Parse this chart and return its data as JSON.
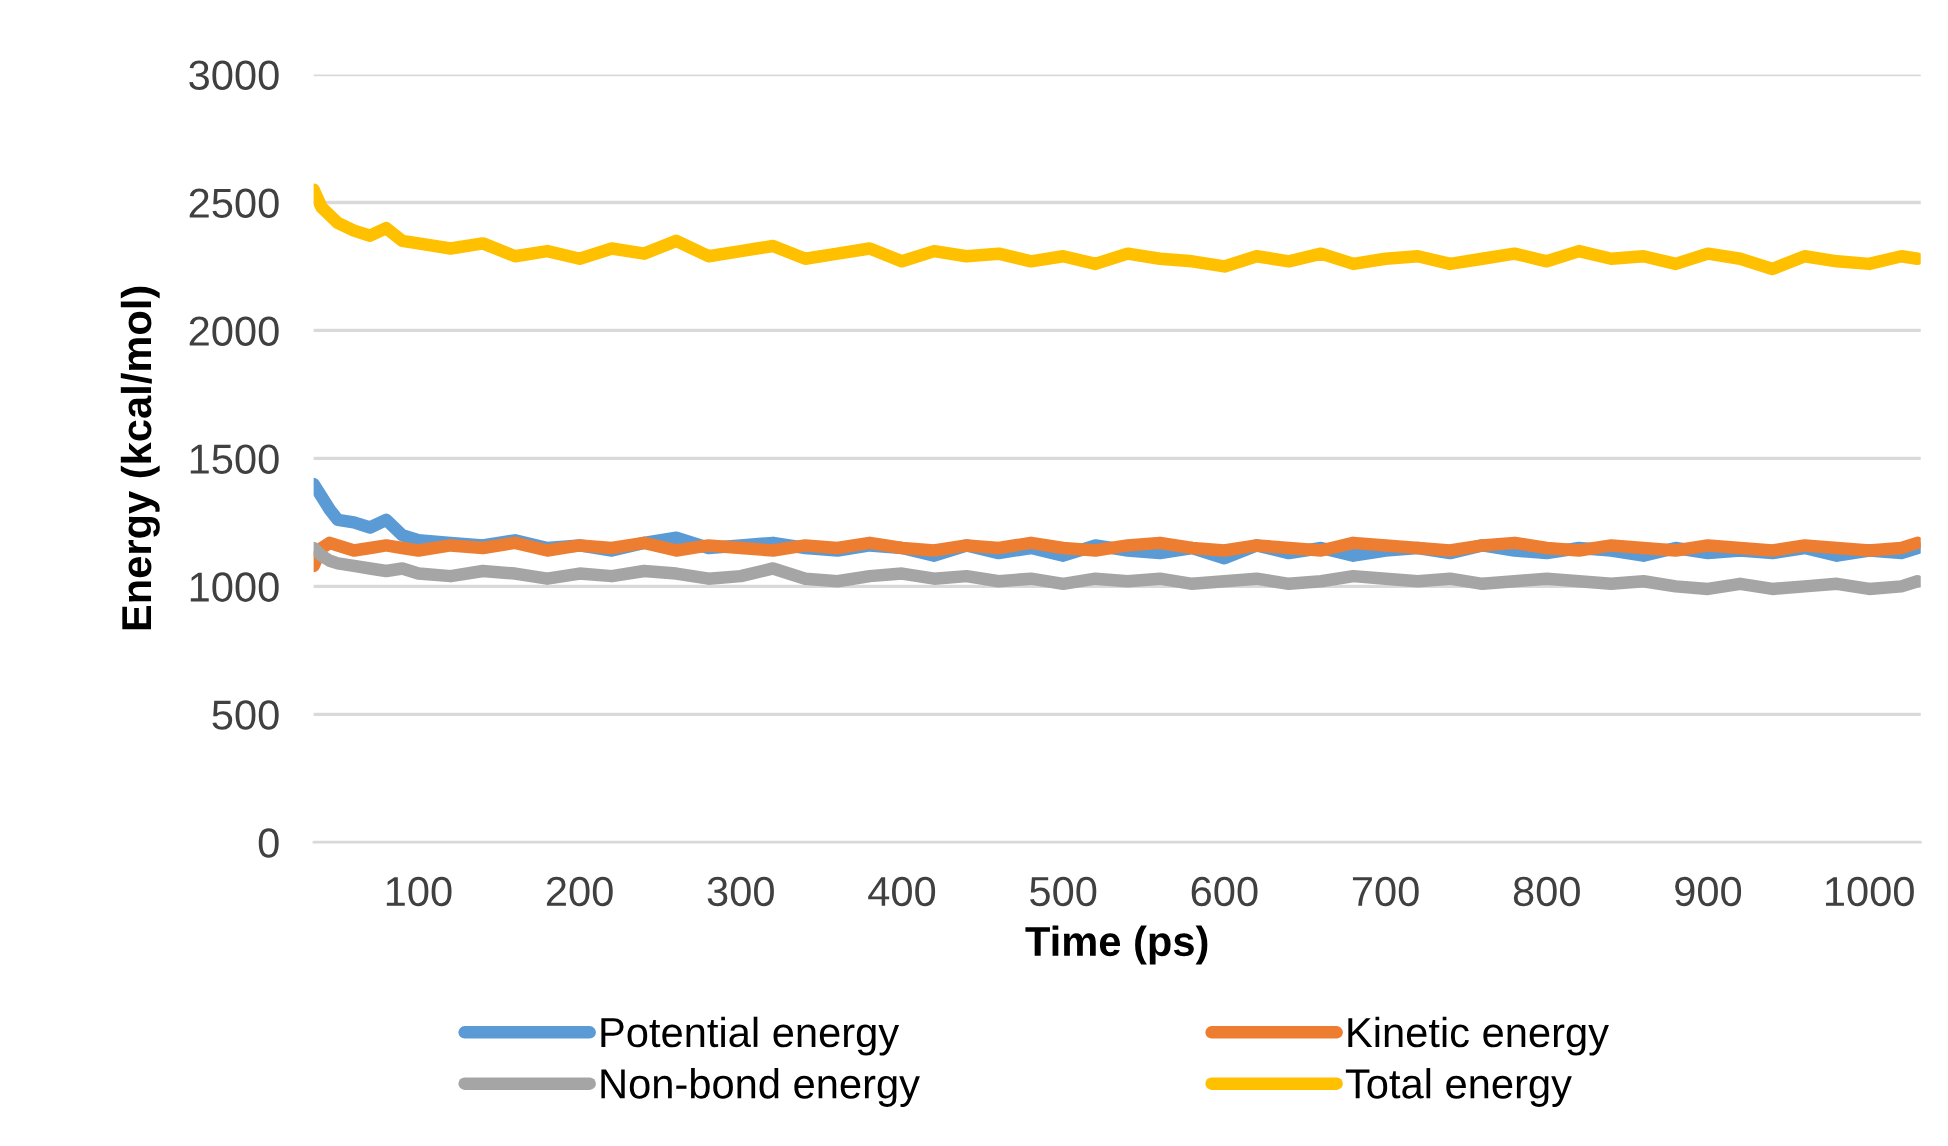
{
  "chart_data": {
    "type": "line",
    "xlabel": "Time (ps)",
    "ylabel": "Energy (kcal/mol)",
    "x": [
      35,
      40,
      45,
      50,
      60,
      70,
      80,
      90,
      100,
      120,
      140,
      160,
      180,
      200,
      220,
      240,
      260,
      280,
      300,
      320,
      340,
      360,
      380,
      400,
      420,
      440,
      460,
      480,
      500,
      520,
      540,
      560,
      580,
      600,
      620,
      640,
      660,
      680,
      700,
      720,
      740,
      760,
      780,
      800,
      820,
      840,
      860,
      880,
      900,
      920,
      940,
      960,
      980,
      1000,
      1020,
      1030
    ],
    "series": [
      {
        "name": "Potential energy",
        "color": "#5b9bd5",
        "values": [
          1400,
          1350,
          1300,
          1260,
          1250,
          1230,
          1260,
          1200,
          1180,
          1170,
          1160,
          1180,
          1150,
          1160,
          1140,
          1170,
          1190,
          1150,
          1160,
          1170,
          1150,
          1140,
          1160,
          1150,
          1120,
          1160,
          1130,
          1150,
          1120,
          1160,
          1140,
          1130,
          1150,
          1110,
          1160,
          1130,
          1150,
          1120,
          1140,
          1150,
          1130,
          1160,
          1140,
          1130,
          1150,
          1140,
          1120,
          1150,
          1130,
          1140,
          1130,
          1150,
          1120,
          1140,
          1130,
          1150
        ]
      },
      {
        "name": "Kinetic energy",
        "color": "#ed7d31",
        "values": [
          1080,
          1150,
          1170,
          1160,
          1140,
          1150,
          1160,
          1150,
          1140,
          1160,
          1150,
          1170,
          1140,
          1160,
          1150,
          1170,
          1140,
          1160,
          1150,
          1140,
          1160,
          1150,
          1170,
          1150,
          1140,
          1160,
          1150,
          1170,
          1150,
          1140,
          1160,
          1170,
          1150,
          1140,
          1160,
          1150,
          1140,
          1170,
          1160,
          1150,
          1140,
          1160,
          1170,
          1150,
          1140,
          1160,
          1150,
          1140,
          1160,
          1150,
          1140,
          1160,
          1150,
          1140,
          1150,
          1170
        ]
      },
      {
        "name": "Non-bond energy",
        "color": "#a5a5a5",
        "values": [
          1150,
          1120,
          1100,
          1090,
          1080,
          1070,
          1060,
          1070,
          1050,
          1040,
          1060,
          1050,
          1030,
          1050,
          1040,
          1060,
          1050,
          1030,
          1040,
          1070,
          1030,
          1020,
          1040,
          1050,
          1030,
          1040,
          1020,
          1030,
          1010,
          1030,
          1020,
          1030,
          1010,
          1020,
          1030,
          1010,
          1020,
          1040,
          1030,
          1020,
          1030,
          1010,
          1020,
          1030,
          1020,
          1010,
          1020,
          1000,
          990,
          1010,
          990,
          1000,
          1010,
          990,
          1000,
          1020
        ]
      },
      {
        "name": "Total energy",
        "color": "#ffc000",
        "values": [
          2550,
          2480,
          2450,
          2420,
          2390,
          2370,
          2400,
          2350,
          2340,
          2320,
          2340,
          2290,
          2310,
          2280,
          2320,
          2300,
          2350,
          2290,
          2310,
          2330,
          2280,
          2300,
          2320,
          2270,
          2310,
          2290,
          2300,
          2270,
          2290,
          2260,
          2300,
          2280,
          2270,
          2250,
          2290,
          2270,
          2300,
          2260,
          2280,
          2290,
          2260,
          2280,
          2300,
          2270,
          2310,
          2280,
          2290,
          2260,
          2300,
          2280,
          2240,
          2290,
          2270,
          2260,
          2290,
          2280
        ]
      }
    ],
    "xlim": [
      35,
      1032
    ],
    "xticks": [
      100,
      200,
      300,
      400,
      500,
      600,
      700,
      800,
      900,
      1000
    ],
    "ylim": [
      0,
      3000
    ],
    "yticks": [
      0,
      500,
      1000,
      1500,
      2000,
      2500,
      3000
    ],
    "grid": "y",
    "legend": "bottom",
    "marker": "none",
    "line_style": "solid"
  }
}
